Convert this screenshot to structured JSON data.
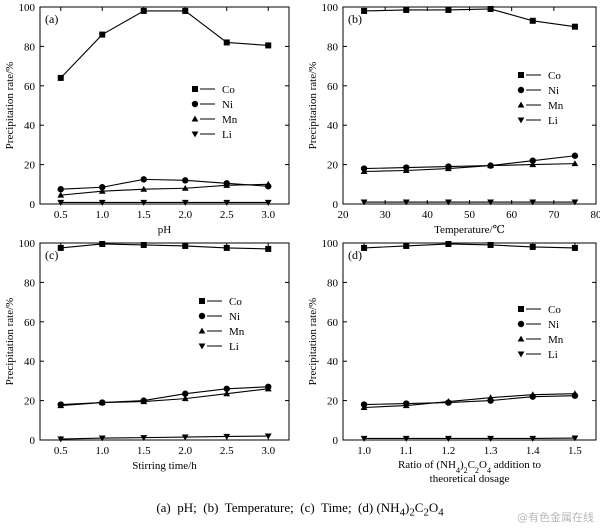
{
  "caption": "(a)  pH;  (b)  Temperature;  (c)  Time;  (d) (NH4)2C2O4",
  "watermark": "@有色金属在线",
  "legend_labels": [
    "Co",
    "Ni",
    "Mn",
    "Li"
  ],
  "chart_data": [
    {
      "type": "line",
      "panel_label": "(a)",
      "xlabel": "pH",
      "ylabel": "Precipitation rate/%",
      "xlim": [
        0.25,
        3.25
      ],
      "ylim": [
        0,
        100
      ],
      "xticks": [
        0.5,
        1.0,
        1.5,
        2.0,
        2.5,
        3.0
      ],
      "xtick_labels": [
        "0.5",
        "1.0",
        "1.5",
        "2.0",
        "2.5",
        "3.0"
      ],
      "yticks": [
        0,
        20,
        40,
        60,
        80,
        100
      ],
      "legend_position": "right-middle",
      "x": [
        0.5,
        1.0,
        1.5,
        2.0,
        2.5,
        3.0
      ],
      "series": [
        {
          "name": "Co",
          "marker": "square",
          "values": [
            64,
            86,
            98,
            98,
            82,
            80.5
          ]
        },
        {
          "name": "Ni",
          "marker": "circle",
          "values": [
            7.5,
            8.5,
            12.5,
            12,
            10.5,
            9
          ]
        },
        {
          "name": "Mn",
          "marker": "triangle-up",
          "values": [
            4.5,
            6.5,
            7.5,
            8,
            9.5,
            10
          ]
        },
        {
          "name": "Li",
          "marker": "triangle-down",
          "values": [
            0.8,
            0.8,
            0.8,
            0.8,
            0.8,
            0.8
          ]
        }
      ]
    },
    {
      "type": "line",
      "panel_label": "(b)",
      "xlabel": "Temperature/℃",
      "ylabel": "Precipitation rate/%",
      "xlim": [
        20,
        80
      ],
      "ylim": [
        0,
        100
      ],
      "xticks": [
        20,
        30,
        40,
        50,
        60,
        70,
        80
      ],
      "xtick_labels": [
        "20",
        "30",
        "40",
        "50",
        "60",
        "70",
        "80"
      ],
      "yticks": [
        0,
        20,
        40,
        60,
        80,
        100
      ],
      "legend_position": "right-middle",
      "x": [
        25,
        35,
        45,
        55,
        65,
        75
      ],
      "series": [
        {
          "name": "Co",
          "marker": "square",
          "values": [
            98,
            98.5,
            98.5,
            99,
            93,
            90
          ]
        },
        {
          "name": "Ni",
          "marker": "circle",
          "values": [
            18,
            18.5,
            19,
            19.5,
            22,
            24.5
          ]
        },
        {
          "name": "Mn",
          "marker": "triangle-up",
          "values": [
            16.5,
            17,
            18,
            19.5,
            20,
            20.5
          ]
        },
        {
          "name": "Li",
          "marker": "triangle-down",
          "values": [
            1,
            1,
            1,
            1,
            1,
            1
          ]
        }
      ]
    },
    {
      "type": "line",
      "panel_label": "(c)",
      "xlabel": "Stirring time/h",
      "ylabel": "Precipitation rate/%",
      "xlim": [
        0.25,
        3.25
      ],
      "ylim": [
        0,
        100
      ],
      "xticks": [
        0.5,
        1.0,
        1.5,
        2.0,
        2.5,
        3.0
      ],
      "xtick_labels": [
        "0.5",
        "1.0",
        "1.5",
        "2.0",
        "2.5",
        "3.0"
      ],
      "yticks": [
        0,
        20,
        40,
        60,
        80,
        100
      ],
      "legend_position": "right-middle",
      "x": [
        0.5,
        1.0,
        1.5,
        2.0,
        2.5,
        3.0
      ],
      "series": [
        {
          "name": "Co",
          "marker": "square",
          "values": [
            97.5,
            99.5,
            99,
            98.5,
            97.5,
            97
          ]
        },
        {
          "name": "Ni",
          "marker": "circle",
          "values": [
            18,
            19,
            20,
            23.5,
            26,
            27
          ]
        },
        {
          "name": "Mn",
          "marker": "triangle-up",
          "values": [
            17.5,
            19,
            19.5,
            21,
            23.5,
            26
          ]
        },
        {
          "name": "Li",
          "marker": "triangle-down",
          "values": [
            0.5,
            1,
            1.2,
            1.5,
            1.8,
            2
          ]
        }
      ]
    },
    {
      "type": "line",
      "panel_label": "(d)",
      "xlabel": "Ratio of (NH4)2C2O4 addition to theoretical dosage",
      "ylabel": "Precipitation rate/%",
      "xlim": [
        0.95,
        1.55
      ],
      "ylim": [
        0,
        100
      ],
      "xticks": [
        1.0,
        1.1,
        1.2,
        1.3,
        1.4,
        1.5
      ],
      "xtick_labels": [
        "1.0",
        "1.1",
        "1.2",
        "1.3",
        "1.4",
        "1.5"
      ],
      "yticks": [
        0,
        20,
        40,
        60,
        80,
        100
      ],
      "legend_position": "right-middle",
      "x": [
        1.0,
        1.1,
        1.2,
        1.3,
        1.4,
        1.5
      ],
      "series": [
        {
          "name": "Co",
          "marker": "square",
          "values": [
            97.5,
            98.5,
            99.5,
            99,
            98,
            97.5
          ]
        },
        {
          "name": "Ni",
          "marker": "circle",
          "values": [
            18,
            18.5,
            19,
            20,
            22,
            22.5
          ]
        },
        {
          "name": "Mn",
          "marker": "triangle-up",
          "values": [
            16.5,
            17.5,
            19.5,
            21.5,
            23,
            23.5
          ]
        },
        {
          "name": "Li",
          "marker": "triangle-down",
          "values": [
            0.8,
            0.8,
            0.8,
            0.8,
            0.8,
            1
          ]
        }
      ]
    }
  ]
}
